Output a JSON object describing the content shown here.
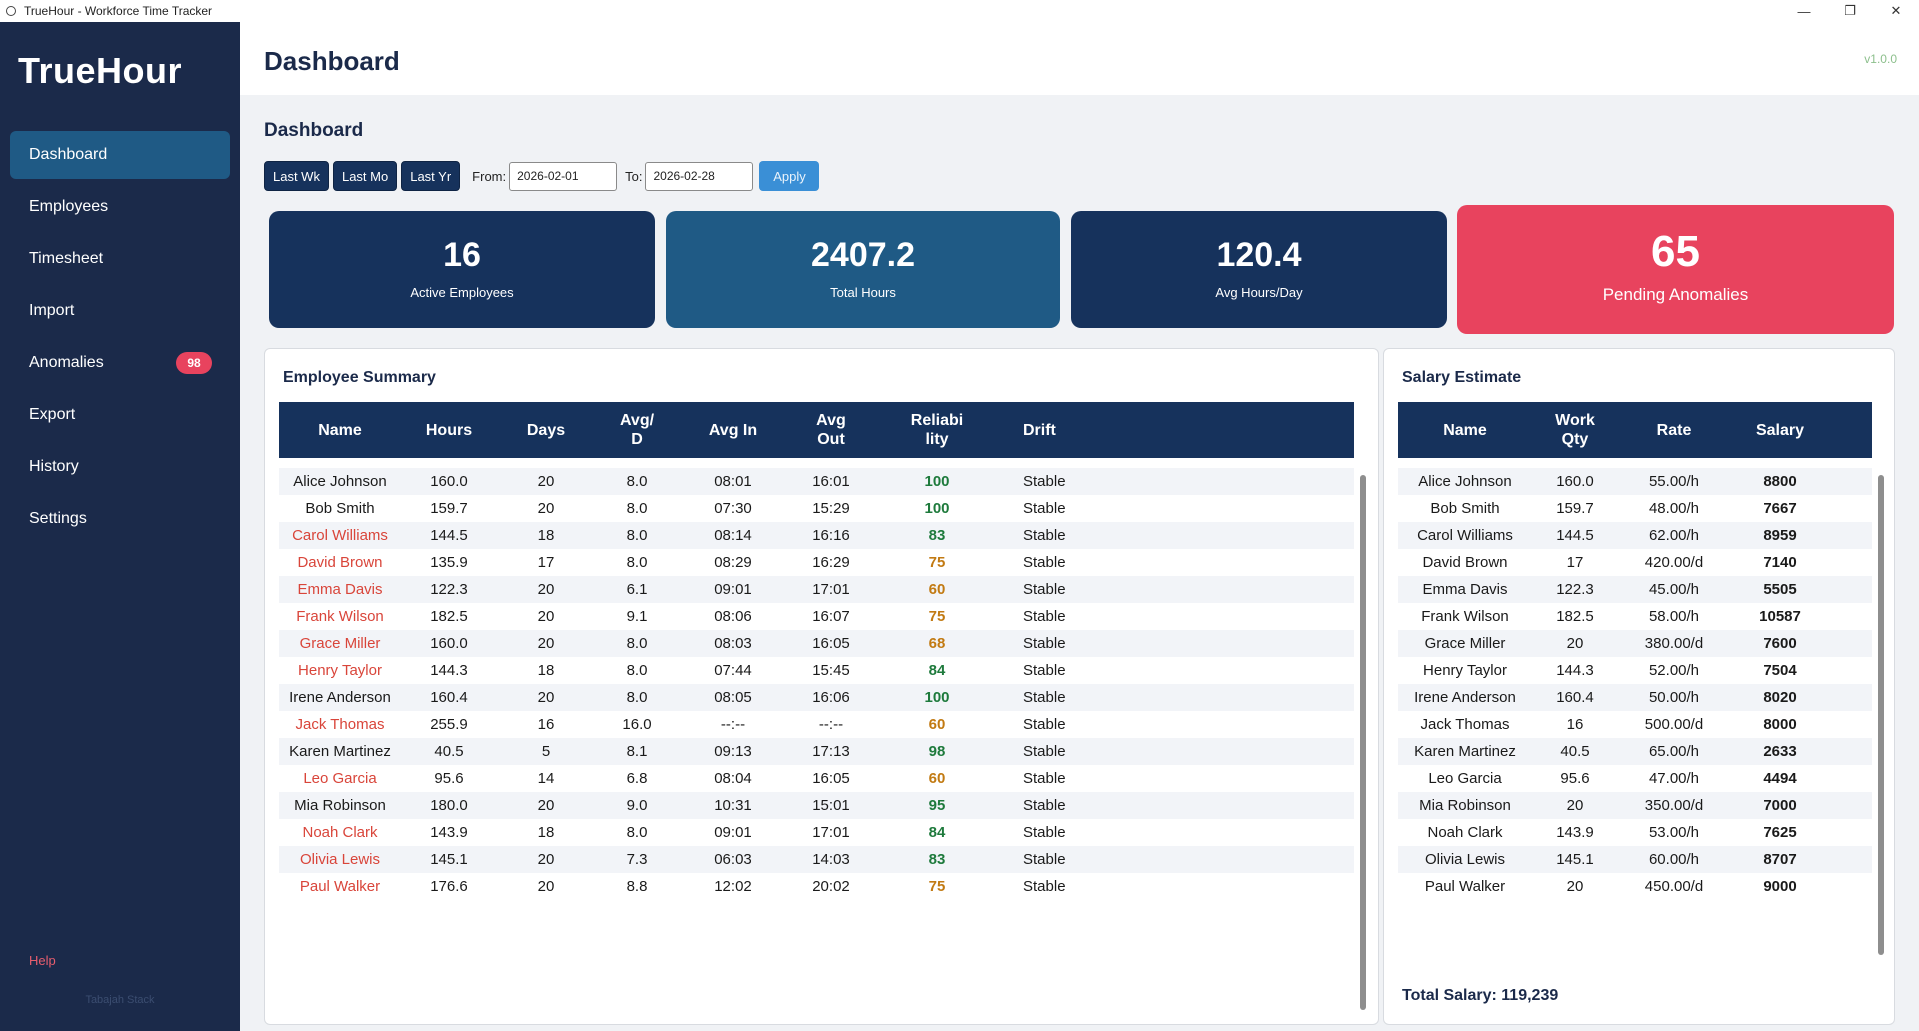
{
  "window": {
    "title": "TrueHour - Workforce Time Tracker",
    "controls": [
      "—",
      "❐",
      "✕"
    ]
  },
  "sidebar": {
    "logo": "TrueHour",
    "items": [
      {
        "label": "Dashboard",
        "active": true
      },
      {
        "label": "Employees"
      },
      {
        "label": "Timesheet"
      },
      {
        "label": "Import"
      },
      {
        "label": "Anomalies",
        "badge": "98"
      },
      {
        "label": "Export"
      },
      {
        "label": "History"
      },
      {
        "label": "Settings"
      }
    ],
    "help": "Help",
    "brand": "Tabajah Stack"
  },
  "header": {
    "title": "Dashboard",
    "version": "v1.0.0"
  },
  "main": {
    "section_title": "Dashboard",
    "filters": {
      "quick": [
        "Last Wk",
        "Last Mo",
        "Last Yr"
      ],
      "from_label": "From:",
      "from_value": "2026-02-01",
      "to_label": "To:",
      "to_value": "2026-02-28",
      "apply": "Apply"
    },
    "stats": [
      {
        "value": "16",
        "label": "Active Employees"
      },
      {
        "value": "2407.2",
        "label": "Total Hours"
      },
      {
        "value": "120.4",
        "label": "Avg Hours/Day"
      },
      {
        "value": "65",
        "label": "Pending Anomalies"
      }
    ]
  },
  "employee_summary": {
    "title": "Employee Summary",
    "columns": [
      "Name",
      "Hours",
      "Days",
      "Avg/\nD",
      "Avg In",
      "Avg\nOut",
      "Reliabi\nlity",
      "Drift"
    ],
    "rows": [
      {
        "name": "Alice Johnson",
        "hours": "160.0",
        "days": "20",
        "avg": "8.0",
        "in": "08:01",
        "out": "16:01",
        "rel": "100",
        "drift": "Stable",
        "flag": false
      },
      {
        "name": "Bob Smith",
        "hours": "159.7",
        "days": "20",
        "avg": "8.0",
        "in": "07:30",
        "out": "15:29",
        "rel": "100",
        "drift": "Stable",
        "flag": false
      },
      {
        "name": "Carol Williams",
        "hours": "144.5",
        "days": "18",
        "avg": "8.0",
        "in": "08:14",
        "out": "16:16",
        "rel": "83",
        "drift": "Stable",
        "flag": true
      },
      {
        "name": "David Brown",
        "hours": "135.9",
        "days": "17",
        "avg": "8.0",
        "in": "08:29",
        "out": "16:29",
        "rel": "75",
        "drift": "Stable",
        "flag": true
      },
      {
        "name": "Emma Davis",
        "hours": "122.3",
        "days": "20",
        "avg": "6.1",
        "in": "09:01",
        "out": "17:01",
        "rel": "60",
        "drift": "Stable",
        "flag": true
      },
      {
        "name": "Frank Wilson",
        "hours": "182.5",
        "days": "20",
        "avg": "9.1",
        "in": "08:06",
        "out": "16:07",
        "rel": "75",
        "drift": "Stable",
        "flag": true
      },
      {
        "name": "Grace Miller",
        "hours": "160.0",
        "days": "20",
        "avg": "8.0",
        "in": "08:03",
        "out": "16:05",
        "rel": "68",
        "drift": "Stable",
        "flag": true
      },
      {
        "name": "Henry Taylor",
        "hours": "144.3",
        "days": "18",
        "avg": "8.0",
        "in": "07:44",
        "out": "15:45",
        "rel": "84",
        "drift": "Stable",
        "flag": true
      },
      {
        "name": "Irene Anderson",
        "hours": "160.4",
        "days": "20",
        "avg": "8.0",
        "in": "08:05",
        "out": "16:06",
        "rel": "100",
        "drift": "Stable",
        "flag": false
      },
      {
        "name": "Jack Thomas",
        "hours": "255.9",
        "days": "16",
        "avg": "16.0",
        "in": "--:--",
        "out": "--:--",
        "rel": "60",
        "drift": "Stable",
        "flag": true
      },
      {
        "name": "Karen Martinez",
        "hours": "40.5",
        "days": "5",
        "avg": "8.1",
        "in": "09:13",
        "out": "17:13",
        "rel": "98",
        "drift": "Stable",
        "flag": false
      },
      {
        "name": "Leo Garcia",
        "hours": "95.6",
        "days": "14",
        "avg": "6.8",
        "in": "08:04",
        "out": "16:05",
        "rel": "60",
        "drift": "Stable",
        "flag": true
      },
      {
        "name": "Mia Robinson",
        "hours": "180.0",
        "days": "20",
        "avg": "9.0",
        "in": "10:31",
        "out": "15:01",
        "rel": "95",
        "drift": "Stable",
        "flag": false
      },
      {
        "name": "Noah Clark",
        "hours": "143.9",
        "days": "18",
        "avg": "8.0",
        "in": "09:01",
        "out": "17:01",
        "rel": "84",
        "drift": "Stable",
        "flag": true
      },
      {
        "name": "Olivia Lewis",
        "hours": "145.1",
        "days": "20",
        "avg": "7.3",
        "in": "06:03",
        "out": "14:03",
        "rel": "83",
        "drift": "Stable",
        "flag": true
      },
      {
        "name": "Paul Walker",
        "hours": "176.6",
        "days": "20",
        "avg": "8.8",
        "in": "12:02",
        "out": "20:02",
        "rel": "75",
        "drift": "Stable",
        "flag": true
      }
    ]
  },
  "salary_estimate": {
    "title": "Salary Estimate",
    "columns": [
      "Name",
      "Work\nQty",
      "Rate",
      "Salary"
    ],
    "rows": [
      {
        "name": "Alice Johnson",
        "qty": "160.0",
        "rate": "55.00/h",
        "salary": "8800"
      },
      {
        "name": "Bob Smith",
        "qty": "159.7",
        "rate": "48.00/h",
        "salary": "7667"
      },
      {
        "name": "Carol Williams",
        "qty": "144.5",
        "rate": "62.00/h",
        "salary": "8959"
      },
      {
        "name": "David Brown",
        "qty": "17",
        "rate": "420.00/d",
        "salary": "7140"
      },
      {
        "name": "Emma Davis",
        "qty": "122.3",
        "rate": "45.00/h",
        "salary": "5505"
      },
      {
        "name": "Frank Wilson",
        "qty": "182.5",
        "rate": "58.00/h",
        "salary": "10587"
      },
      {
        "name": "Grace Miller",
        "qty": "20",
        "rate": "380.00/d",
        "salary": "7600"
      },
      {
        "name": "Henry Taylor",
        "qty": "144.3",
        "rate": "52.00/h",
        "salary": "7504"
      },
      {
        "name": "Irene Anderson",
        "qty": "160.4",
        "rate": "50.00/h",
        "salary": "8020"
      },
      {
        "name": "Jack Thomas",
        "qty": "16",
        "rate": "500.00/d",
        "salary": "8000"
      },
      {
        "name": "Karen Martinez",
        "qty": "40.5",
        "rate": "65.00/h",
        "salary": "2633"
      },
      {
        "name": "Leo Garcia",
        "qty": "95.6",
        "rate": "47.00/h",
        "salary": "4494"
      },
      {
        "name": "Mia Robinson",
        "qty": "20",
        "rate": "350.00/d",
        "salary": "7000"
      },
      {
        "name": "Noah Clark",
        "qty": "143.9",
        "rate": "53.00/h",
        "salary": "7625"
      },
      {
        "name": "Olivia Lewis",
        "qty": "145.1",
        "rate": "60.00/h",
        "salary": "8707"
      },
      {
        "name": "Paul Walker",
        "qty": "20",
        "rate": "450.00/d",
        "salary": "9000"
      }
    ],
    "total": "Total Salary: 119,239"
  },
  "colors": {
    "sidebar": "#1b2a4a",
    "navy": "#16325c",
    "teal": "#1f5a85",
    "alert": "#e8435e",
    "flag_name": "#d9453a",
    "reliable": "#1e7a3c",
    "warning": "#c27a12"
  }
}
